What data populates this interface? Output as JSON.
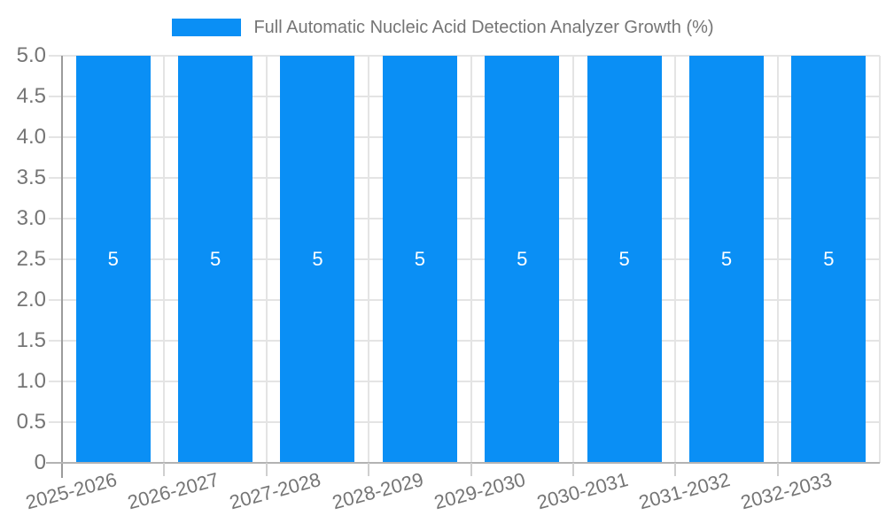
{
  "chart_data": {
    "type": "bar",
    "categories": [
      "2025-2026",
      "2026-2027",
      "2027-2028",
      "2028-2029",
      "2029-2030",
      "2030-2031",
      "2031-2032",
      "2032-2033"
    ],
    "series": [
      {
        "name": "Full Automatic Nucleic Acid Detection Analyzer Growth (%)",
        "values": [
          5,
          5,
          5,
          5,
          5,
          5,
          5,
          5
        ]
      }
    ],
    "bar_value_labels": [
      "5",
      "5",
      "5",
      "5",
      "5",
      "5",
      "5",
      "5"
    ],
    "xlabel": "",
    "ylabel": "",
    "ylim": [
      0,
      5
    ],
    "yticks": [
      "0",
      "0.5",
      "1.0",
      "1.5",
      "2.0",
      "2.5",
      "3.0",
      "3.5",
      "4.0",
      "4.5",
      "5.0"
    ],
    "grid": true,
    "legend": {
      "position": "top-center"
    },
    "x_label_rotation_deg": -15,
    "colors": {
      "bar": "#0A8FF5",
      "bar_value_label": "#FFFFFF",
      "text": "#757575",
      "grid": "#E4E4E4",
      "y_axis_line": "#9B9B9B",
      "x_axis_line": "#B3B3B3",
      "tick": "#CFCFCF",
      "background": "#FFFFFF"
    }
  }
}
